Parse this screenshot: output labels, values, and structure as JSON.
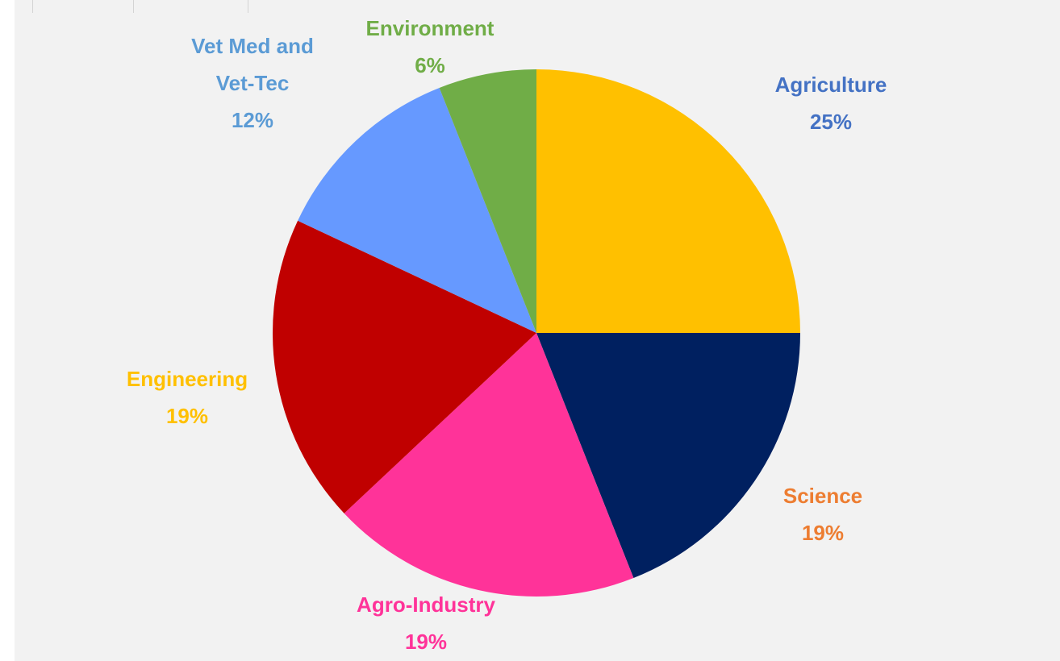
{
  "chart_data": {
    "type": "pie",
    "categories": [
      "Agriculture",
      "Science",
      "Agro-Industry",
      "Engineering",
      "Vet Med and Vet-Tec",
      "Environment"
    ],
    "values": [
      25,
      19,
      19,
      19,
      12,
      6
    ],
    "value_labels": [
      "25%",
      "19%",
      "19%",
      "19%",
      "12%",
      "6%"
    ],
    "colors": [
      "#FFC000",
      "#002060",
      "#FF3399",
      "#C00000",
      "#6699FF",
      "#70AD47"
    ],
    "label_colors": [
      "#4472C4",
      "#ED7D31",
      "#FF3399",
      "#FFC000",
      "#5B9BD5",
      "#70AD47"
    ]
  }
}
